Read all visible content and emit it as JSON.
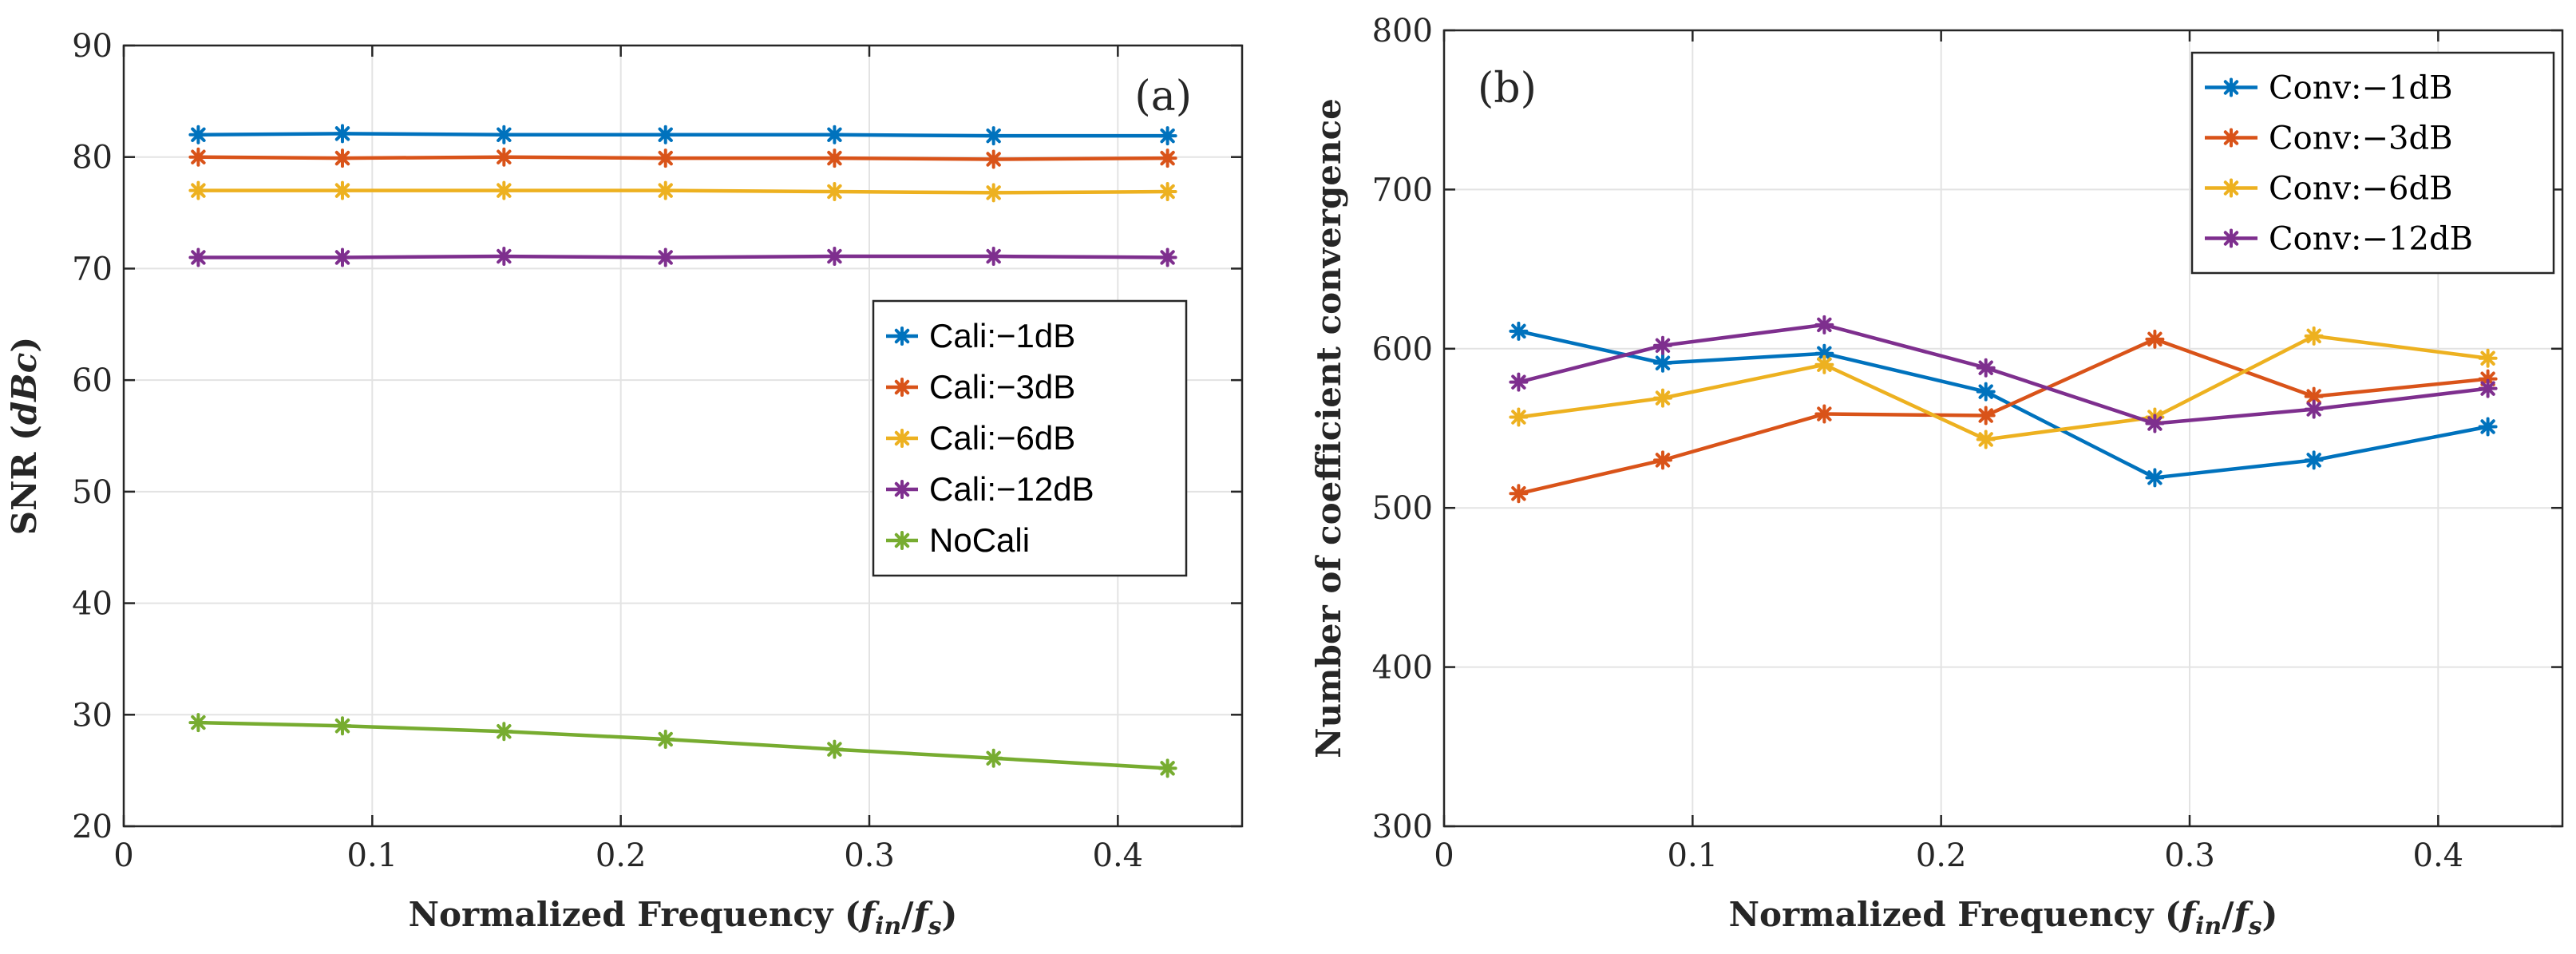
{
  "chart_data": [
    {
      "type": "line",
      "panel": "(a)",
      "xlabel": "Normalized Frequency (f_in/f_s)",
      "xlabel_parts": [
        "Normalized Frequency (",
        "f",
        "in",
        "/",
        "f",
        "s",
        ")"
      ],
      "ylabel": "SNR (dBc)",
      "ylabel_parts": [
        "SNR (",
        "dBc",
        ")"
      ],
      "xlim": [
        0,
        0.45
      ],
      "ylim": [
        20,
        90
      ],
      "xticks": [
        0,
        0.1,
        0.2,
        0.3,
        0.4
      ],
      "xtick_labels": [
        "0",
        "0.1",
        "0.2",
        "0.3",
        "0.4"
      ],
      "yticks": [
        20,
        30,
        40,
        50,
        60,
        70,
        80,
        90
      ],
      "ytick_labels": [
        "20",
        "30",
        "40",
        "50",
        "60",
        "70",
        "80",
        "90"
      ],
      "grid": true,
      "legend_position": "center-right",
      "x": [
        0.03,
        0.088,
        0.153,
        0.218,
        0.286,
        0.35,
        0.42
      ],
      "series": [
        {
          "name": "Cali:−1dB",
          "color": "#0072BD",
          "values": [
            82.0,
            82.1,
            82.0,
            82.0,
            82.0,
            81.9,
            81.9
          ]
        },
        {
          "name": "Cali:−3dB",
          "color": "#D95319",
          "values": [
            80.0,
            79.9,
            80.0,
            79.9,
            79.9,
            79.8,
            79.9
          ]
        },
        {
          "name": "Cali:−6dB",
          "color": "#EDB120",
          "values": [
            77.0,
            77.0,
            77.0,
            77.0,
            76.9,
            76.8,
            76.9
          ]
        },
        {
          "name": "Cali:−12dB",
          "color": "#7E2F8E",
          "values": [
            71.0,
            71.0,
            71.1,
            71.0,
            71.1,
            71.1,
            71.0
          ]
        },
        {
          "name": "NoCali",
          "color": "#77AC30",
          "values": [
            29.3,
            29.0,
            28.5,
            27.8,
            26.9,
            26.1,
            25.2
          ]
        }
      ]
    },
    {
      "type": "line",
      "panel": "(b)",
      "xlabel": "Normalized Frequency (f_in/f_s)",
      "xlabel_parts": [
        "Normalized Frequency (",
        "f",
        "in",
        "/",
        "f",
        "s",
        ")"
      ],
      "ylabel": "Number of coefficient convergence",
      "xlim": [
        0,
        0.45
      ],
      "ylim": [
        300,
        800
      ],
      "xticks": [
        0,
        0.1,
        0.2,
        0.3,
        0.4
      ],
      "xtick_labels": [
        "0",
        "0.1",
        "0.2",
        "0.3",
        "0.4"
      ],
      "yticks": [
        300,
        400,
        500,
        600,
        700,
        800
      ],
      "ytick_labels": [
        "300",
        "400",
        "500",
        "600",
        "700",
        "800"
      ],
      "grid": true,
      "legend_position": "top-right",
      "x": [
        0.03,
        0.088,
        0.153,
        0.218,
        0.286,
        0.35,
        0.42
      ],
      "series": [
        {
          "name": "Conv:−1dB",
          "color": "#0072BD",
          "values": [
            611,
            591,
            597,
            573,
            519,
            530,
            551
          ]
        },
        {
          "name": "Conv:−3dB",
          "color": "#D95319",
          "values": [
            509,
            530,
            559,
            558,
            606,
            570,
            581
          ]
        },
        {
          "name": "Conv:−6dB",
          "color": "#EDB120",
          "values": [
            557,
            569,
            590,
            543,
            557,
            608,
            594
          ]
        },
        {
          "name": "Conv:−12dB",
          "color": "#7E2F8E",
          "values": [
            579,
            602,
            615,
            588,
            553,
            562,
            575
          ]
        }
      ]
    }
  ]
}
